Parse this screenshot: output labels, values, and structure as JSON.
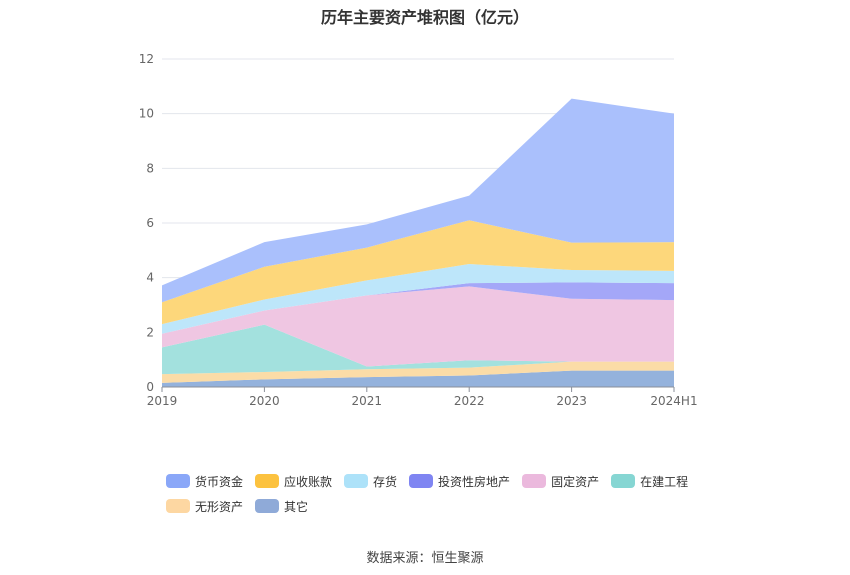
{
  "chart_data": {
    "type": "area",
    "stacked": true,
    "title": "历年主要资产堆积图（亿元）",
    "categories": [
      "2019",
      "2020",
      "2021",
      "2022",
      "2023",
      "2024H1"
    ],
    "ylim": [
      0,
      12
    ],
    "yticks": [
      0,
      2,
      4,
      6,
      8,
      10,
      12
    ],
    "grid": true,
    "legend_position": "bottom",
    "series": [
      {
        "name": "其它",
        "color": "#94b2dc",
        "values": [
          0.15,
          0.28,
          0.36,
          0.42,
          0.6,
          0.6
        ]
      },
      {
        "name": "无形资产",
        "color": "#fbdca7",
        "values": [
          0.32,
          0.27,
          0.29,
          0.29,
          0.33,
          0.33
        ]
      },
      {
        "name": "在建工程",
        "color": "#a3e1de",
        "values": [
          0.98,
          1.73,
          0.1,
          0.27,
          0.0,
          0.0
        ]
      },
      {
        "name": "固定资产",
        "color": "#efc6e2",
        "values": [
          0.5,
          0.52,
          2.6,
          2.7,
          2.3,
          2.25
        ]
      },
      {
        "name": "投资性房地产",
        "color": "#a4a7f8",
        "values": [
          0.0,
          0.0,
          0.0,
          0.12,
          0.6,
          0.62
        ]
      },
      {
        "name": "存货",
        "color": "#bde6fa",
        "values": [
          0.35,
          0.4,
          0.55,
          0.7,
          0.45,
          0.45
        ]
      },
      {
        "name": "应收账款",
        "color": "#fdd77b",
        "values": [
          0.8,
          1.2,
          1.2,
          1.6,
          1.0,
          1.05
        ]
      },
      {
        "name": "货币资金",
        "color": "#aac0fc",
        "values": [
          0.62,
          0.9,
          0.85,
          0.9,
          5.27,
          4.7
        ]
      }
    ],
    "source": "数据来源：恒生聚源"
  },
  "legend": [
    {
      "name": "货币资金",
      "color": "#8aa7f8"
    },
    {
      "name": "应收账款",
      "color": "#fcc23f"
    },
    {
      "name": "存货",
      "color": "#ade2f9"
    },
    {
      "name": "投资性房地产",
      "color": "#7f85f2"
    },
    {
      "name": "固定资产",
      "color": "#ebb9dd"
    },
    {
      "name": "在建工程",
      "color": "#86d6d3"
    },
    {
      "name": "无形资产",
      "color": "#fdd7a2"
    },
    {
      "name": "其它",
      "color": "#8faad8"
    }
  ]
}
